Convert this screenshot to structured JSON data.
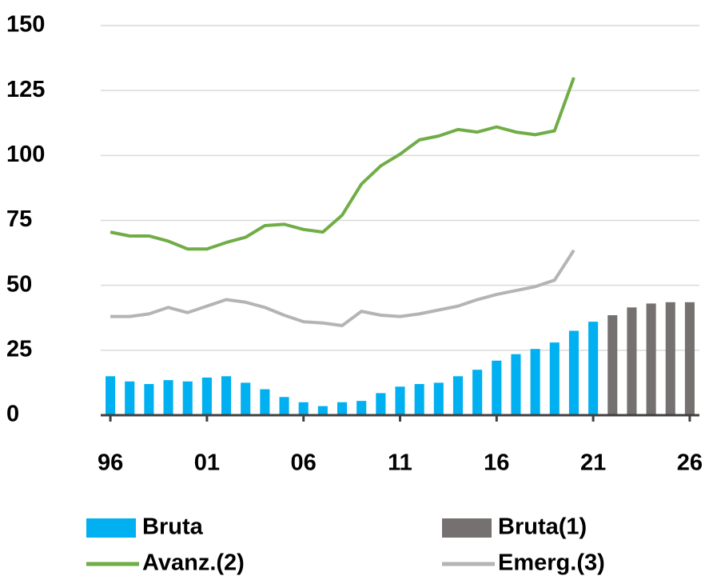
{
  "chart_data": {
    "type": "combo",
    "xlim": [
      1995.5,
      2026.5
    ],
    "xticks": [
      {
        "value": 1996,
        "label": "96"
      },
      {
        "value": 2001,
        "label": "01"
      },
      {
        "value": 2006,
        "label": "06"
      },
      {
        "value": 2011,
        "label": "11"
      },
      {
        "value": 2016,
        "label": "16"
      },
      {
        "value": 2021,
        "label": "21"
      },
      {
        "value": 2026,
        "label": "26"
      }
    ],
    "ylim": [
      0,
      150
    ],
    "yticks": [
      0,
      25,
      50,
      75,
      100,
      125,
      150
    ],
    "grid": true,
    "series": [
      {
        "name": "Bruta",
        "type": "bar",
        "color": "#00b0f0",
        "x": [
          1996,
          1997,
          1998,
          1999,
          2000,
          2001,
          2002,
          2003,
          2004,
          2005,
          2006,
          2007,
          2008,
          2009,
          2010,
          2011,
          2012,
          2013,
          2014,
          2015,
          2016,
          2017,
          2018,
          2019,
          2020,
          2021
        ],
        "values": [
          15,
          13,
          12,
          13.5,
          13,
          14.5,
          15,
          12.5,
          10,
          7,
          5,
          3.5,
          5,
          5.5,
          8.5,
          11,
          12,
          12.5,
          15,
          17.5,
          21,
          23.5,
          25.5,
          28,
          32.5,
          36
        ]
      },
      {
        "name": "Bruta(1)",
        "type": "bar",
        "color": "#767171",
        "x": [
          2022,
          2023,
          2024,
          2025,
          2026
        ],
        "values": [
          38.5,
          41.5,
          43,
          43.5,
          43.5
        ]
      },
      {
        "name": "Avanz.(2)",
        "type": "line",
        "color": "#70ad47",
        "x": [
          1996,
          1997,
          1998,
          1999,
          2000,
          2001,
          2002,
          2003,
          2004,
          2005,
          2006,
          2007,
          2008,
          2009,
          2010,
          2011,
          2012,
          2013,
          2014,
          2015,
          2016,
          2017,
          2018,
          2019,
          2020
        ],
        "values": [
          70.5,
          69,
          69,
          67,
          64,
          64,
          66.5,
          68.5,
          73,
          73.5,
          71.5,
          70.5,
          77,
          89,
          96,
          100.5,
          106,
          107.5,
          110,
          109,
          111,
          109,
          108,
          109.5,
          130
        ]
      },
      {
        "name": "Emerg.(3)",
        "type": "line",
        "color": "#b4b4b4",
        "x": [
          1996,
          1997,
          1998,
          1999,
          2000,
          2001,
          2002,
          2003,
          2004,
          2005,
          2006,
          2007,
          2008,
          2009,
          2010,
          2011,
          2012,
          2013,
          2014,
          2015,
          2016,
          2017,
          2018,
          2019,
          2020
        ],
        "values": [
          38,
          38,
          39,
          41.5,
          39.5,
          42,
          44.5,
          43.5,
          41.5,
          38.5,
          36,
          35.5,
          34.5,
          40,
          38.5,
          38,
          39,
          40.5,
          42,
          44.5,
          46.5,
          48,
          49.5,
          52,
          63.5
        ]
      }
    ]
  }
}
